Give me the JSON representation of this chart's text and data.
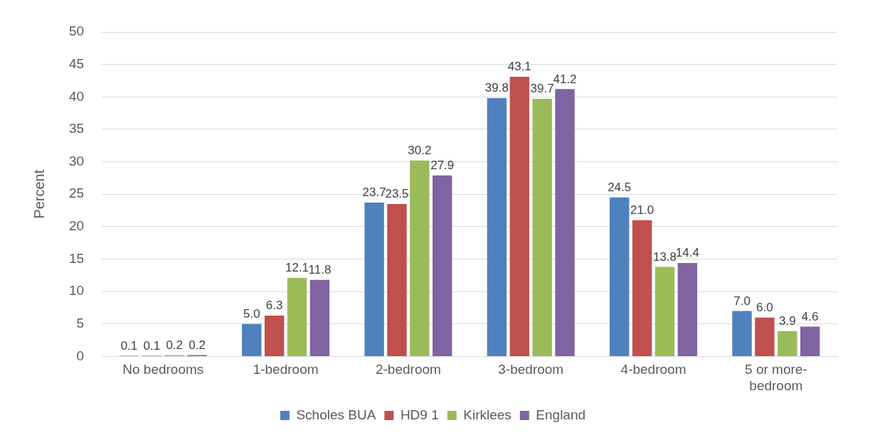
{
  "chart_data": {
    "type": "bar",
    "ylabel": "Percent",
    "categories": [
      "No bedrooms",
      "1-bedroom",
      "2-bedroom",
      "3-bedroom",
      "4-bedroom",
      "5 or more-bedroom"
    ],
    "series": [
      {
        "name": "Scholes BUA",
        "color": "#4f81bd",
        "values": [
          0.1,
          5.0,
          23.7,
          39.8,
          24.5,
          7.0
        ],
        "value_labels": [
          "0.1",
          "5.0",
          "23.7",
          "39.8",
          "24.5",
          "7.0"
        ]
      },
      {
        "name": "HD9 1",
        "color": "#c0504d",
        "values": [
          0.1,
          6.3,
          23.5,
          43.1,
          21.0,
          6.0
        ],
        "value_labels": [
          "0.1",
          "6.3",
          "23.5",
          "43.1",
          "21.0",
          "6.0"
        ]
      },
      {
        "name": "Kirklees",
        "color": "#9bbb59",
        "values": [
          0.2,
          12.1,
          30.2,
          39.7,
          13.8,
          3.9
        ],
        "value_labels": [
          "0.2",
          "12.1",
          "30.2",
          "39.7",
          "13.8",
          "3.9"
        ]
      },
      {
        "name": "England",
        "color": "#8064a2",
        "values": [
          0.2,
          11.8,
          27.9,
          41.2,
          14.4,
          4.6
        ],
        "value_labels": [
          "0.2",
          "11.8",
          "27.9",
          "41.2",
          "14.4",
          "4.6"
        ]
      }
    ],
    "ylim": [
      0,
      50
    ],
    "yticks": [
      0,
      5,
      10,
      15,
      20,
      25,
      30,
      35,
      40,
      45,
      50
    ],
    "grid": "y",
    "legend": "bottom"
  }
}
